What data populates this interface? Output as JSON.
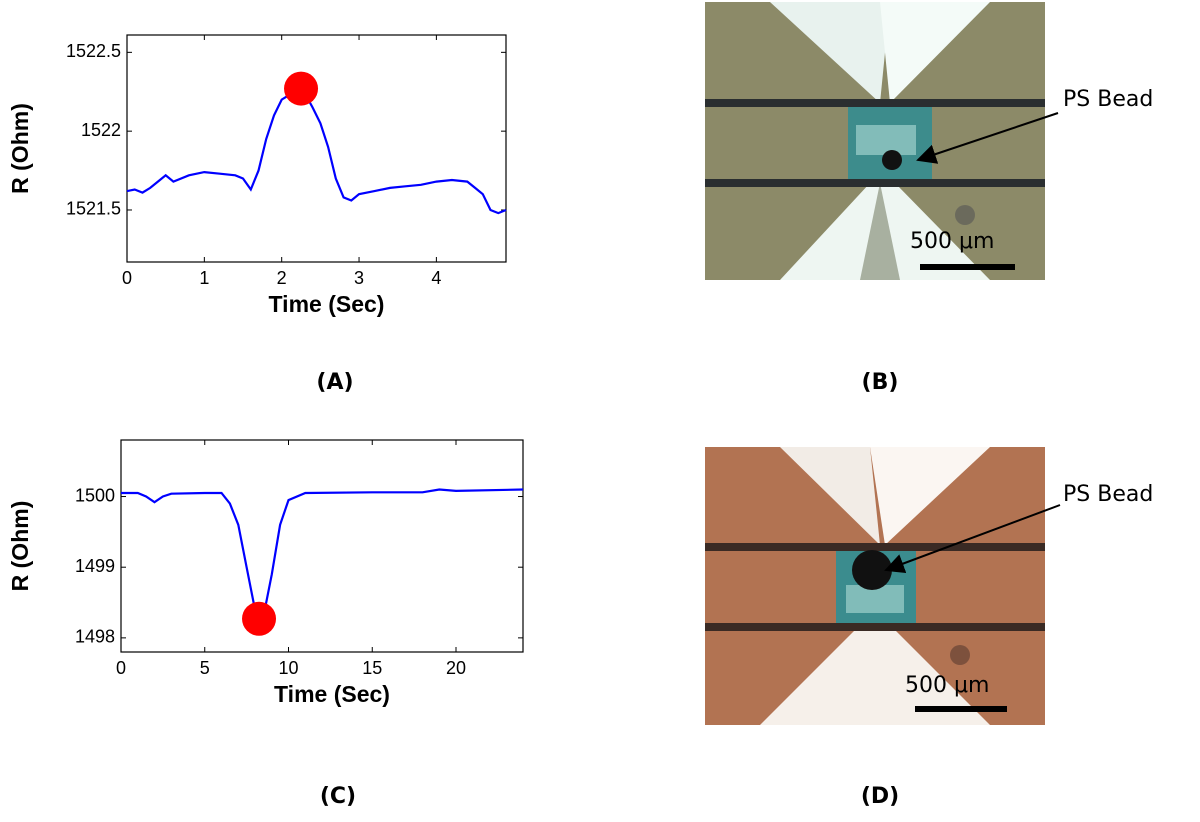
{
  "chart_data": [
    {
      "type": "line",
      "x": [
        0,
        0.1,
        0.2,
        0.3,
        0.4,
        0.5,
        0.6,
        0.8,
        1.0,
        1.2,
        1.4,
        1.5,
        1.6,
        1.7,
        1.8,
        1.9,
        2.0,
        2.1,
        2.2,
        2.3,
        2.4,
        2.5,
        2.6,
        2.7,
        2.8,
        2.9,
        3.0,
        3.2,
        3.4,
        3.6,
        3.8,
        4.0,
        4.2,
        4.4,
        4.5,
        4.6,
        4.7,
        4.8,
        4.9
      ],
      "values": [
        1521.62,
        1521.63,
        1521.61,
        1521.64,
        1521.68,
        1521.72,
        1521.68,
        1521.72,
        1521.74,
        1521.73,
        1521.72,
        1521.7,
        1521.63,
        1521.75,
        1521.95,
        1522.1,
        1522.2,
        1522.23,
        1522.25,
        1522.24,
        1522.15,
        1522.05,
        1521.9,
        1521.7,
        1521.58,
        1521.56,
        1521.6,
        1521.62,
        1521.64,
        1521.65,
        1521.66,
        1521.68,
        1521.69,
        1521.68,
        1521.64,
        1521.6,
        1521.5,
        1521.48,
        1521.5
      ],
      "color": "#0000ff",
      "marker": {
        "x": 2.25,
        "y": 1522.27,
        "color": "#ff0000"
      },
      "x_label": "Time (Sec)",
      "y_label": "R (Ohm)",
      "xlim": [
        0,
        4.9
      ],
      "xticks": [
        0,
        1,
        2,
        3,
        4
      ],
      "ylim": [
        1521.17,
        1522.61
      ],
      "yticks": [
        1521.5,
        1522,
        1522.5
      ]
    },
    {
      "type": "line",
      "x": [
        0,
        1,
        1.5,
        2,
        2.5,
        3,
        5,
        6,
        6.5,
        7,
        7.5,
        8,
        8.5,
        9,
        9.5,
        10,
        11,
        15,
        18,
        19,
        20,
        24
      ],
      "values": [
        1500.05,
        1500.05,
        1500.0,
        1499.92,
        1500.0,
        1500.04,
        1500.05,
        1500.05,
        1499.9,
        1499.6,
        1499.0,
        1498.4,
        1498.3,
        1498.9,
        1499.6,
        1499.95,
        1500.05,
        1500.06,
        1500.06,
        1500.1,
        1500.08,
        1500.1
      ],
      "color": "#0000ff",
      "marker": {
        "x": 8.24,
        "y": 1498.27,
        "color": "#ff0000"
      },
      "x_label": "Time (Sec)",
      "y_label": "R (Ohm)",
      "xlim": [
        0,
        24
      ],
      "xticks": [
        0,
        5,
        10,
        15,
        20
      ],
      "ylim": [
        1497.8,
        1500.8
      ],
      "yticks": [
        1498,
        1499,
        1500
      ]
    }
  ],
  "panels": [
    "(A)",
    "(B)",
    "(C)",
    "(D)"
  ],
  "images": [
    {
      "label": "PS Bead",
      "scale": "500 μm"
    },
    {
      "label": "PS Bead",
      "scale": "500 μm"
    }
  ]
}
